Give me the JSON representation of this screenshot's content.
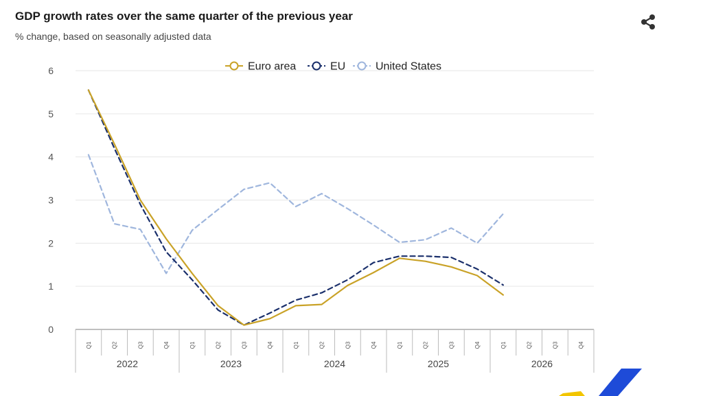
{
  "header": {
    "title": "GDP growth rates over the same quarter of the previous year",
    "subtitle": "% change, based on seasonally adjusted data",
    "share_icon": "share-icon"
  },
  "colors": {
    "euro_area": "#c9a227",
    "eu": "#1a2f6b",
    "united_states": "#9fb6dd",
    "grid": "#e6e6e6",
    "axis": "#999999",
    "logo_yellow": "#f2c500",
    "logo_blue": "#1e4bd8"
  },
  "chart_data": {
    "type": "line",
    "title": "GDP growth rates over the same quarter of the previous year",
    "subtitle": "% change, based on seasonally adjusted data",
    "xlabel": "",
    "ylabel": "",
    "ylim": [
      0,
      6
    ],
    "yticks": [
      0,
      1,
      2,
      3,
      4,
      5,
      6
    ],
    "grid": true,
    "legend_position": "top-center",
    "categories": [
      "Q1",
      "Q2",
      "Q3",
      "Q4",
      "Q1",
      "Q2",
      "Q3",
      "Q4",
      "Q1",
      "Q2",
      "Q3",
      "Q4",
      "Q1",
      "Q2",
      "Q3",
      "Q4",
      "Q1",
      "Q2",
      "Q3",
      "Q4"
    ],
    "years": [
      "2022",
      "2023",
      "2024",
      "2025",
      "2026"
    ],
    "series": [
      {
        "name": "Euro area",
        "style": "solid",
        "values": [
          5.55,
          4.3,
          3.0,
          2.1,
          1.3,
          0.55,
          0.1,
          0.25,
          0.55,
          0.58,
          1.02,
          1.32,
          1.65,
          1.58,
          1.45,
          1.25,
          0.8,
          null,
          null,
          null
        ]
      },
      {
        "name": "EU",
        "style": "dashed",
        "values": [
          5.55,
          4.2,
          2.9,
          1.8,
          1.15,
          0.45,
          0.1,
          0.38,
          0.68,
          0.85,
          1.15,
          1.55,
          1.7,
          1.7,
          1.67,
          1.4,
          1.03,
          null,
          null,
          null
        ]
      },
      {
        "name": "United States",
        "style": "dashed",
        "values": [
          4.05,
          2.45,
          2.32,
          1.3,
          2.3,
          2.78,
          3.25,
          3.4,
          2.85,
          3.15,
          2.8,
          2.42,
          2.02,
          2.08,
          2.35,
          2.0,
          2.68,
          null,
          null,
          null
        ]
      }
    ]
  }
}
